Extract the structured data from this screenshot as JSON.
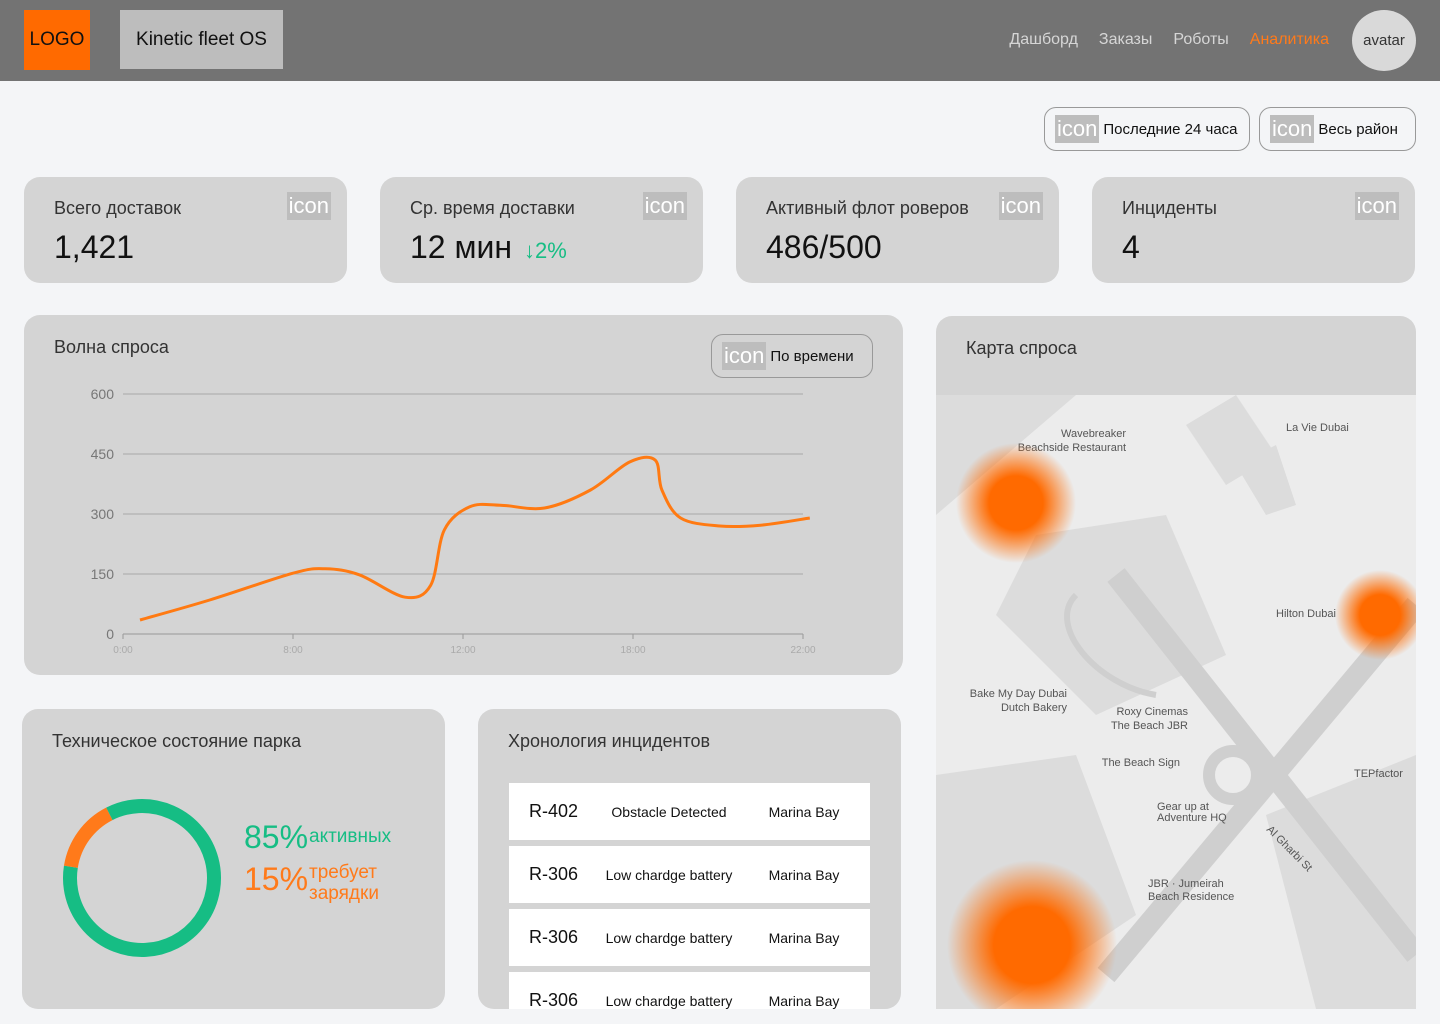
{
  "header": {
    "logo": "LOGO",
    "product": "Kinetic fleet OS",
    "nav": [
      "Дашборд",
      "Заказы",
      "Роботы",
      "Аналитика"
    ],
    "active_nav": 3,
    "avatar": "avatar"
  },
  "filters": [
    {
      "icon": "icon",
      "label": "Последние 24 часа"
    },
    {
      "icon": "icon",
      "label": "Весь район"
    }
  ],
  "kpis": [
    {
      "title": "Всего доставок",
      "icon": "icon",
      "value": "1,421"
    },
    {
      "title": "Ср. время доставки",
      "icon": "icon",
      "value": "12 мин",
      "delta": "↓2%"
    },
    {
      "title": "Активный флот роверов",
      "icon": "icon",
      "value": "486/500"
    },
    {
      "title": "Инциденты",
      "icon": "icon",
      "value": "4"
    }
  ],
  "chart_data": [
    {
      "type": "line",
      "title": "Волна спроса",
      "filter_icon": "icon",
      "filter": "По времени",
      "x": [
        0.1,
        0.51,
        1.0,
        1.19,
        1.39,
        1.66,
        1.81,
        1.89,
        2.04,
        2.22,
        2.48,
        2.75,
        2.98,
        3.13,
        3.17,
        3.28,
        3.51,
        3.75,
        4.04
      ],
      "series": [
        {
          "color": "#ff7a12",
          "values": [
            35,
            85,
            152,
            163,
            148,
            92,
            122,
            260,
            318,
            322,
            315,
            360,
            430,
            435,
            360,
            290,
            270,
            272,
            290
          ]
        }
      ],
      "xlim": [
        0,
        4
      ],
      "xticks": [
        {
          "value": 0,
          "label": "0:00"
        },
        {
          "value": 1,
          "label": "8:00"
        },
        {
          "value": 2,
          "label": "12:00"
        },
        {
          "value": 3,
          "label": "18:00"
        },
        {
          "value": 4,
          "label": "22:00"
        }
      ],
      "ylim": [
        0,
        600
      ],
      "yticks": [
        0,
        150,
        300,
        450,
        600
      ],
      "grid": true
    },
    {
      "type": "pie",
      "title": "Техническое состояние парка",
      "categories": [
        "активных",
        "требует зарядки"
      ],
      "values": [
        85,
        15
      ],
      "value_labels": [
        "85%",
        "15%"
      ],
      "colors": [
        "#16bd84",
        "#ff7a1a"
      ]
    }
  ],
  "map": {
    "title": "Карта спроса",
    "labels": [
      "La Vie Dubai",
      "Wavebreaker",
      "Beachside Restaurant",
      "Hilton Dubai",
      "Bake My Day Dubai",
      "Dutch Bakery",
      "Roxy Cinemas",
      "The Beach JBR",
      "The Beach Sign",
      "Gear up at",
      "Adventure HQ",
      "JBR · Jumeirah",
      "Beach Residence",
      "Al Gharbi St",
      "TEPfactor"
    ]
  },
  "incidents": {
    "title": "Хронология инцидентов",
    "rows": [
      [
        "R-402",
        "Obstacle Detected",
        "Marina Bay"
      ],
      [
        "R-306",
        "Low chardge battery",
        "Marina Bay"
      ],
      [
        "R-306",
        "Low chardge battery",
        "Marina Bay"
      ],
      [
        "R-306",
        "Low chardge battery",
        "Marina Bay"
      ]
    ]
  }
}
